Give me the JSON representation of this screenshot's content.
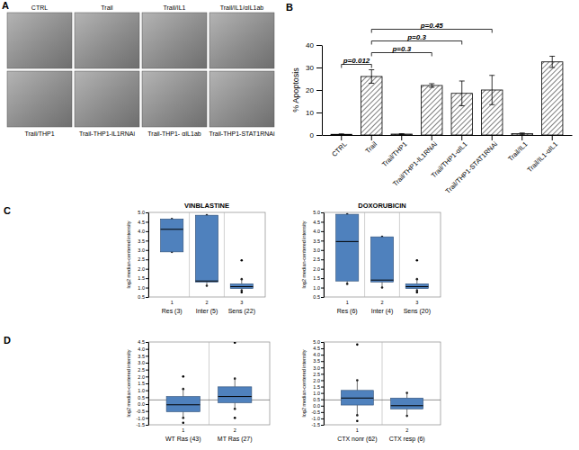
{
  "image_panel": {
    "panel": "A",
    "top_labels": [
      "CTRL",
      "Trail",
      "Trail/IL1",
      "Trail/IL1/αIL1ab"
    ],
    "bottom_labels": [
      "Trail/THP1",
      "Trail-THP1-IL1RNAi",
      "Trail-THP1- αIL1ab",
      "Trail-THP1-STAT1RNAi"
    ]
  },
  "chart_data": [
    {
      "type": "bar",
      "panel": "B",
      "ylabel": "% Apoptosis",
      "categories": [
        "CTRL",
        "Trail",
        "Trail/THP1",
        "Trail/THP1-IL1RNAi",
        "Trail/THP1-αIL1",
        "Trail/THP1-STAT1RNAi",
        "Trail/IL1",
        "Trail/IL1-αIL1"
      ],
      "values": [
        0.3,
        26,
        0.4,
        22,
        18.5,
        20,
        0.6,
        32.5
      ],
      "errors": [
        0.2,
        3,
        0.2,
        0.8,
        5.5,
        6.5,
        0.3,
        2.5
      ],
      "color": "#000000",
      "ylim": [
        0,
        40
      ],
      "yticks": [
        0,
        10,
        20,
        30,
        40
      ],
      "annotations": [
        {
          "text": "p=0.012",
          "between": [
            "CTRL",
            "Trail"
          ]
        },
        {
          "text": "p=0.3",
          "between": [
            "Trail",
            "Trail/THP1-IL1RNAi"
          ]
        },
        {
          "text": "p=0.3",
          "between": [
            "Trail",
            "Trail/THP1-αIL1"
          ]
        },
        {
          "text": "p=0.45",
          "between": [
            "Trail",
            "Trail/THP1-STAT1RNAi"
          ]
        }
      ]
    },
    {
      "type": "box",
      "panel": "C",
      "title": "VINBLASTINE",
      "ylabel": "log2 median-centered intensity",
      "categories": [
        "Res (3)",
        "Inter (5)",
        "Sens (22)"
      ],
      "x_numbers": [
        1,
        2,
        3
      ],
      "color": "#4f81bd",
      "ylim": [
        0.5,
        5
      ],
      "yticks": [
        0.5,
        {
          "value": 1,
          "label": "1.0"
        },
        1.5,
        {
          "value": 2,
          "label": "2.0"
        },
        2.5,
        {
          "value": 3,
          "label": "3.0"
        },
        3.5,
        {
          "value": 4,
          "label": "4.0"
        },
        4.5,
        {
          "value": 5,
          "label": "5.0"
        }
      ],
      "boxes": [
        {
          "min": 2.9,
          "q1": 2.9,
          "median": 4.1,
          "q3": 4.65,
          "max": 4.65,
          "outliers": []
        },
        {
          "min": 1.1,
          "q1": 1.3,
          "median": 1.35,
          "q3": 4.85,
          "max": 4.85,
          "outliers": []
        },
        {
          "min": 0.85,
          "q1": 0.95,
          "median": 1.05,
          "q3": 1.2,
          "max": 1.45,
          "outliers": [
            2.45,
            0.75
          ]
        }
      ]
    },
    {
      "type": "box",
      "title": "DOXORUBICIN",
      "ylabel": "log2 median-centered intensity",
      "categories": [
        "Res (6)",
        "Inter (4)",
        "Sens (20)"
      ],
      "x_numbers": [
        1,
        2,
        3
      ],
      "color": "#4f81bd",
      "ylim": [
        0.5,
        5
      ],
      "yticks": [
        0.5,
        {
          "value": 1,
          "label": "1.0"
        },
        1.5,
        {
          "value": 2,
          "label": "2.0"
        },
        2.5,
        {
          "value": 3,
          "label": "3.0"
        },
        3.5,
        {
          "value": 4,
          "label": "4.0"
        },
        4.5,
        {
          "value": 5,
          "label": "5.0"
        }
      ],
      "boxes": [
        {
          "min": 1.2,
          "q1": 1.35,
          "median": 3.45,
          "q3": 4.9,
          "max": 4.9,
          "outliers": []
        },
        {
          "min": 1.0,
          "q1": 1.3,
          "median": 1.4,
          "q3": 3.7,
          "max": 3.7,
          "outliers": []
        },
        {
          "min": 0.85,
          "q1": 0.95,
          "median": 1.05,
          "q3": 1.2,
          "max": 1.45,
          "outliers": [
            2.45,
            0.75
          ]
        }
      ]
    },
    {
      "type": "box",
      "panel": "D",
      "ylabel": "log2 median-centered intensity",
      "categories": [
        "WT Ras (43)",
        "MT Ras (27)"
      ],
      "x_numbers": [
        1,
        2
      ],
      "color": "#4f81bd",
      "reference_line": 0.3,
      "ylim": [
        -1.5,
        4.5
      ],
      "yticks": [
        -1.5,
        {
          "value": -1,
          "label": "-1.0"
        },
        -0.5,
        {
          "value": 0,
          "label": "0.0"
        },
        0.5,
        {
          "value": 1,
          "label": "1.0"
        },
        1.5,
        {
          "value": 2,
          "label": "2.0"
        },
        2.5,
        {
          "value": 3,
          "label": "3.0"
        },
        3.5,
        {
          "value": 4,
          "label": "4.0"
        },
        4.5
      ],
      "boxes": [
        {
          "min": -1.0,
          "q1": -0.55,
          "median": -0.05,
          "q3": 0.55,
          "max": 1.1,
          "outliers": [
            2.0,
            -1.35
          ]
        },
        {
          "min": -0.35,
          "q1": 0.1,
          "median": 0.55,
          "q3": 1.25,
          "max": 1.85,
          "outliers": [
            4.45,
            -1.0
          ]
        }
      ]
    },
    {
      "type": "box",
      "ylabel": "log2 median-centered intensity",
      "categories": [
        "CTX nonr (62)",
        "CTX resp (6)"
      ],
      "x_numbers": [
        1,
        2
      ],
      "color": "#4f81bd",
      "reference_line": 0.45,
      "ylim": [
        -1.5,
        5
      ],
      "yticks": [
        -1.5,
        {
          "value": -1,
          "label": "-1.0"
        },
        -0.5,
        {
          "value": 0,
          "label": "0.0"
        },
        0.5,
        {
          "value": 1,
          "label": "1.0"
        },
        1.5,
        {
          "value": 2,
          "label": "2.0"
        },
        2.5,
        {
          "value": 3,
          "label": "3.0"
        },
        3.5,
        {
          "value": 4,
          "label": "4.0"
        },
        4.5,
        {
          "value": 5,
          "label": "5.0"
        }
      ],
      "boxes": [
        {
          "min": -0.75,
          "q1": 0.05,
          "median": 0.6,
          "q3": 1.2,
          "max": 2.0,
          "outliers": [
            4.8,
            -1.2
          ]
        },
        {
          "min": -0.8,
          "q1": -0.25,
          "median": 0.0,
          "q3": 0.6,
          "max": 1.0,
          "outliers": []
        }
      ]
    }
  ]
}
